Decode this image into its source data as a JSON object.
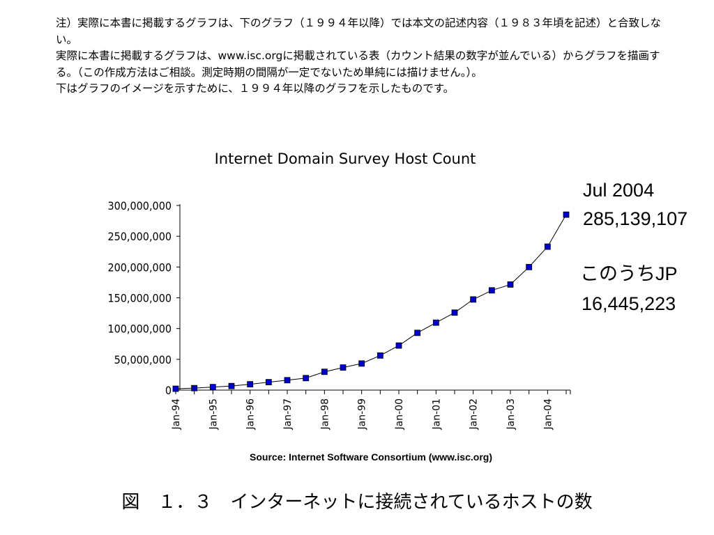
{
  "note": {
    "lines": [
      "注）実際に本書に掲載するグラフは、下のグラフ（１９９４年以降）では本文の記述内容（１９８３年頃を記述）と合致しない。",
      "実際に本書に掲載するグラフは、www.isc.orgに掲載されている表（カウント結果の数字が並んでいる）からグラフを描画する。（この作成方法はご相談。測定時期の間隔が一定でないため単純には描けません。）。",
      "下はグラフのイメージを示すために、１９９４年以降のグラフを示したものです。"
    ]
  },
  "annotations": {
    "latest_date": "Jul 2004",
    "latest_value": "285,139,107",
    "jp_label": "このうちJP",
    "jp_value": "16,445,223"
  },
  "caption": "図　１．３　インターネットに接続されているホストの数",
  "colors": {
    "marker": "#0000cc",
    "line": "#000000"
  },
  "chart_data": {
    "type": "line",
    "title": "Internet Domain Survey Host Count",
    "source": "Source: Internet Software Consortium (www.isc.org)",
    "xlabel": "",
    "ylabel": "",
    "ylim": [
      0,
      300000000
    ],
    "y_ticks": [
      0,
      50000000,
      100000000,
      150000000,
      200000000,
      250000000,
      300000000
    ],
    "y_tick_labels": [
      "0",
      "50,000,000",
      "100,000,000",
      "150,000,000",
      "200,000,000",
      "250,000,000",
      "300,000,000"
    ],
    "x_tick_labels": [
      "Jan-94",
      "Jan-95",
      "Jan-96",
      "Jan-97",
      "Jan-98",
      "Jan-99",
      "Jan-00",
      "Jan-01",
      "Jan-02",
      "Jan-03",
      "Jan-04"
    ],
    "x": [
      "Jan-94",
      "Jul-94",
      "Jan-95",
      "Jul-95",
      "Jan-96",
      "Jul-96",
      "Jan-97",
      "Jul-97",
      "Jan-98",
      "Jul-98",
      "Jan-99",
      "Jul-99",
      "Jan-00",
      "Jul-00",
      "Jan-01",
      "Jul-01",
      "Jan-02",
      "Jul-02",
      "Jan-03",
      "Jul-03",
      "Jan-04",
      "Jul-04"
    ],
    "values": [
      2200000,
      3200000,
      4900000,
      6600000,
      9500000,
      12900000,
      16100000,
      19500000,
      29700000,
      36700000,
      43200000,
      56200000,
      72400000,
      93000000,
      109600000,
      125900000,
      147300000,
      162100000,
      171600000,
      200000000,
      233100000,
      285139107
    ],
    "grid": false,
    "legend": "none"
  }
}
